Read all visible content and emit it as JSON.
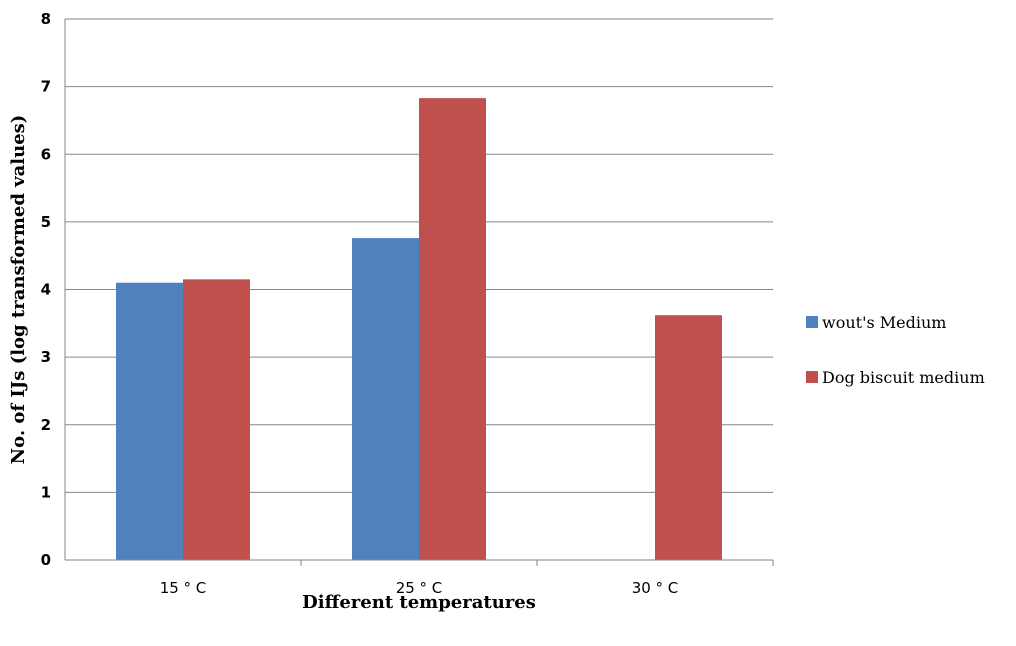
{
  "chart_data": {
    "type": "bar",
    "title": "",
    "xlabel": "Different temperatures",
    "ylabel": "No. of IJs (log transformed values)",
    "categories": [
      "15 ° C",
      "25 ° C",
      "30 ° C"
    ],
    "series": [
      {
        "name": "wout's Medium",
        "values": [
          4.1,
          4.76,
          0
        ],
        "color": "#4F81BD"
      },
      {
        "name": "Dog biscuit medium",
        "values": [
          4.15,
          6.83,
          3.62
        ],
        "color": "#C0504D"
      }
    ],
    "ylim": [
      0,
      8
    ],
    "yticks": [
      "0",
      "1",
      "2",
      "3",
      "4",
      "5",
      "6",
      "7",
      "8"
    ],
    "grid": true,
    "legend_position": "right"
  }
}
